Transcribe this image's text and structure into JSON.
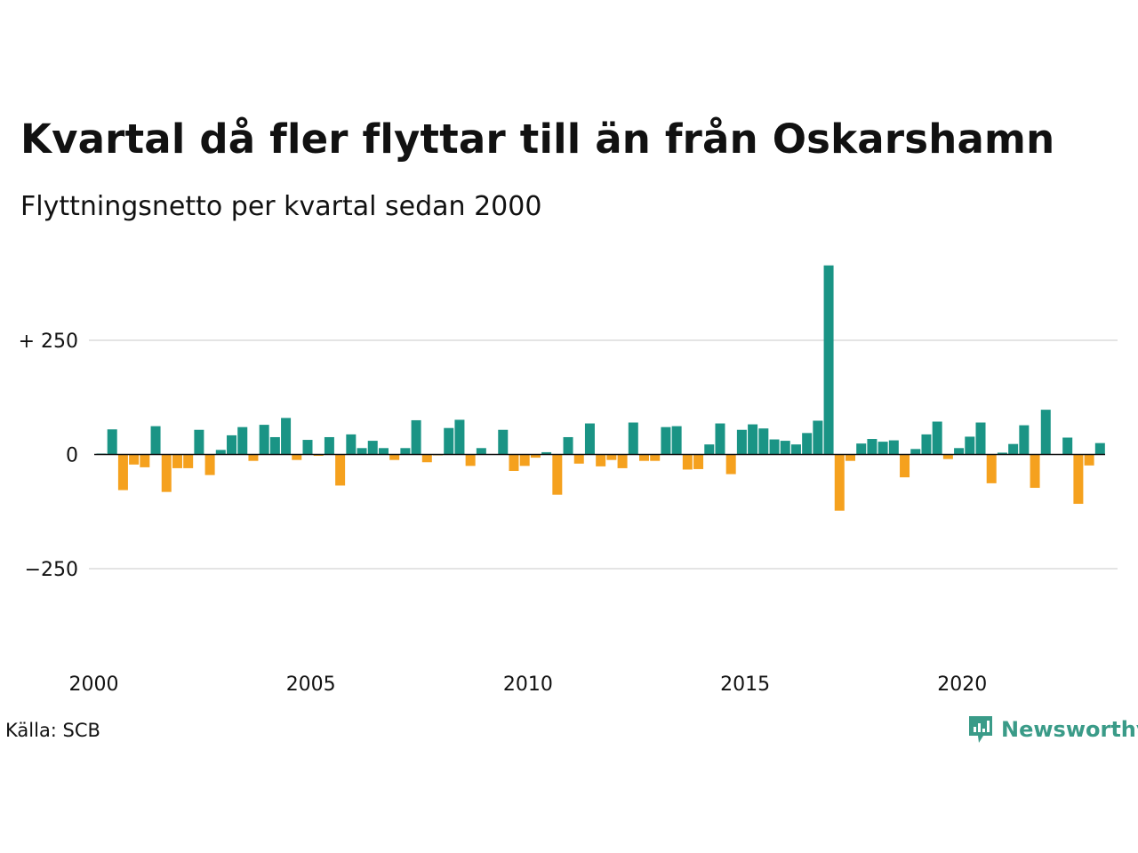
{
  "title": "Kvartal då fler flyttar till än från Oskarshamn",
  "subtitle": "Flyttningsnetto per kvartal sedan 2000",
  "source": "Källa: SCB",
  "brand": {
    "name": "Newsworthy",
    "icon": "newsworthy-logo-icon",
    "color": "#3a9b88"
  },
  "colors": {
    "positive": "#1a9485",
    "negative": "#f5a11e",
    "grid": "#e4e4e4",
    "zero_line": "#111111"
  },
  "chart_data": {
    "type": "bar",
    "title": "Kvartal då fler flyttar till än från Oskarshamn",
    "subtitle": "Flyttningsnetto per kvartal sedan 2000",
    "xlabel": "",
    "ylabel": "",
    "x_start": 2000,
    "x_ticks": [
      "2000",
      "2005",
      "2010",
      "2015",
      "2020"
    ],
    "y_ticks": [
      {
        "value": 250,
        "label": "+ 250"
      },
      {
        "value": 0,
        "label": "0"
      },
      {
        "value": -250,
        "label": "−250"
      }
    ],
    "ylim": [
      -420,
      420
    ],
    "grid": true,
    "legend": "none",
    "values": [
      2,
      55,
      -78,
      -22,
      -28,
      62,
      -82,
      -30,
      -30,
      54,
      -45,
      10,
      42,
      60,
      -14,
      65,
      38,
      80,
      -12,
      32,
      -3,
      38,
      -68,
      44,
      14,
      30,
      14,
      -12,
      14,
      75,
      -17,
      -2,
      58,
      76,
      -25,
      14,
      0,
      54,
      -36,
      -25,
      -7,
      5,
      -88,
      38,
      -20,
      68,
      -26,
      -12,
      -30,
      70,
      -14,
      -14,
      60,
      62,
      -33,
      -32,
      22,
      68,
      -43,
      54,
      66,
      57,
      33,
      30,
      22,
      47,
      74,
      414,
      -123,
      -14,
      24,
      34,
      28,
      31,
      -50,
      12,
      44,
      72,
      -10,
      14,
      39,
      70,
      -63,
      4,
      23,
      64,
      -73,
      98,
      0,
      37,
      -108,
      -24,
      25
    ]
  }
}
